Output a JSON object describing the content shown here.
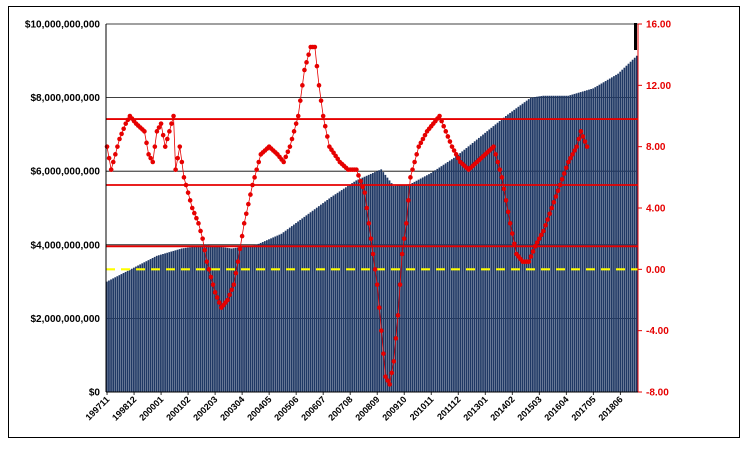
{
  "chart_data": {
    "type": "bar+line",
    "title": "",
    "x_ticks": [
      "199711",
      "199812",
      "200001",
      "200102",
      "200203",
      "200304",
      "200405",
      "200506",
      "200607",
      "200708",
      "200809",
      "200910",
      "201011",
      "201112",
      "201301",
      "201402",
      "201503",
      "201604",
      "201705",
      "201806"
    ],
    "y_left": {
      "min": 0,
      "max": 10000000000,
      "tick_labels": [
        "$0",
        "$2,000,000,000",
        "$4,000,000,000",
        "$6,000,000,000",
        "$8,000,000,000",
        "$10,000,000,000"
      ],
      "tick_values": [
        0,
        2000000000,
        4000000000,
        6000000000,
        8000000000,
        10000000000
      ]
    },
    "y_right": {
      "min": -8,
      "max": 16,
      "tick_labels": [
        "-8.00",
        "-4.00",
        "0.00",
        "4.00",
        "8.00",
        "12.00",
        "16.00"
      ],
      "tick_values": [
        -8,
        -4,
        0,
        4,
        8,
        12,
        16
      ]
    },
    "bar_series": {
      "color": "#1f3864",
      "anchors_month_index_value": [
        [
          0,
          3000000000
        ],
        [
          12,
          3350000000
        ],
        [
          24,
          3700000000
        ],
        [
          36,
          3900000000
        ],
        [
          48,
          4000000000
        ],
        [
          60,
          3900000000
        ],
        [
          72,
          4000000000
        ],
        [
          84,
          4300000000
        ],
        [
          96,
          4800000000
        ],
        [
          108,
          5300000000
        ],
        [
          120,
          5750000000
        ],
        [
          132,
          6050000000
        ],
        [
          138,
          5600000000
        ],
        [
          146,
          5650000000
        ],
        [
          156,
          5950000000
        ],
        [
          168,
          6400000000
        ],
        [
          180,
          6950000000
        ],
        [
          192,
          7500000000
        ],
        [
          204,
          8000000000
        ],
        [
          210,
          8050000000
        ],
        [
          222,
          8050000000
        ],
        [
          234,
          8250000000
        ],
        [
          246,
          8650000000
        ],
        [
          258,
          9300000000
        ]
      ]
    },
    "line_series": {
      "color": "#e60000",
      "axis": "right",
      "anchors_month_index_value": [
        [
          0,
          8
        ],
        [
          2,
          6.5
        ],
        [
          4,
          7.5
        ],
        [
          6,
          8.5
        ],
        [
          9,
          9.5
        ],
        [
          11,
          10
        ],
        [
          14,
          9.5
        ],
        [
          18,
          9
        ],
        [
          20,
          7.5
        ],
        [
          22,
          7
        ],
        [
          24,
          9
        ],
        [
          26,
          9.5
        ],
        [
          28,
          8
        ],
        [
          30,
          9
        ],
        [
          32,
          10
        ],
        [
          33,
          6.5
        ],
        [
          35,
          8
        ],
        [
          37,
          6
        ],
        [
          39,
          5
        ],
        [
          41,
          4
        ],
        [
          44,
          3
        ],
        [
          46,
          2
        ],
        [
          48,
          0.5
        ],
        [
          52,
          -1.5
        ],
        [
          55,
          -2.5
        ],
        [
          58,
          -2
        ],
        [
          61,
          -1
        ],
        [
          63,
          0.5
        ],
        [
          66,
          3
        ],
        [
          70,
          5.5
        ],
        [
          74,
          7.5
        ],
        [
          78,
          8
        ],
        [
          82,
          7.5
        ],
        [
          85,
          7
        ],
        [
          88,
          8
        ],
        [
          92,
          10
        ],
        [
          95,
          13
        ],
        [
          98,
          14.5
        ],
        [
          100,
          14.5
        ],
        [
          102,
          12
        ],
        [
          104,
          10
        ],
        [
          107,
          8
        ],
        [
          112,
          7
        ],
        [
          116,
          6.5
        ],
        [
          120,
          6.5
        ],
        [
          124,
          5
        ],
        [
          127,
          2
        ],
        [
          130,
          -1
        ],
        [
          132,
          -4
        ],
        [
          134,
          -7
        ],
        [
          136,
          -7.5
        ],
        [
          138,
          -6
        ],
        [
          140,
          -3
        ],
        [
          142,
          1
        ],
        [
          144,
          3
        ],
        [
          146,
          6
        ],
        [
          150,
          8
        ],
        [
          154,
          9
        ],
        [
          157,
          9.5
        ],
        [
          160,
          10
        ],
        [
          163,
          9
        ],
        [
          166,
          8
        ],
        [
          170,
          7
        ],
        [
          174,
          6.5
        ],
        [
          178,
          7
        ],
        [
          182,
          7.5
        ],
        [
          186,
          8
        ],
        [
          190,
          6
        ],
        [
          194,
          3
        ],
        [
          197,
          1
        ],
        [
          200,
          0.5
        ],
        [
          203,
          0.5
        ],
        [
          206,
          1.5
        ],
        [
          210,
          2.5
        ],
        [
          214,
          4
        ],
        [
          218,
          5.5
        ],
        [
          222,
          7
        ],
        [
          226,
          8
        ],
        [
          228,
          9
        ],
        [
          231,
          8
        ]
      ]
    },
    "horizontal_lines": [
      {
        "color": "#e60000",
        "value": 1.5,
        "style": "solid"
      },
      {
        "color": "#e60000",
        "value": 5.5,
        "style": "solid"
      },
      {
        "color": "#e60000",
        "value": 9.8,
        "style": "solid"
      },
      {
        "color": "#ffff00",
        "value": 0.0,
        "style": "dashed"
      }
    ],
    "grid": {
      "horizontal": true,
      "vertical": false
    },
    "legend": "none"
  }
}
